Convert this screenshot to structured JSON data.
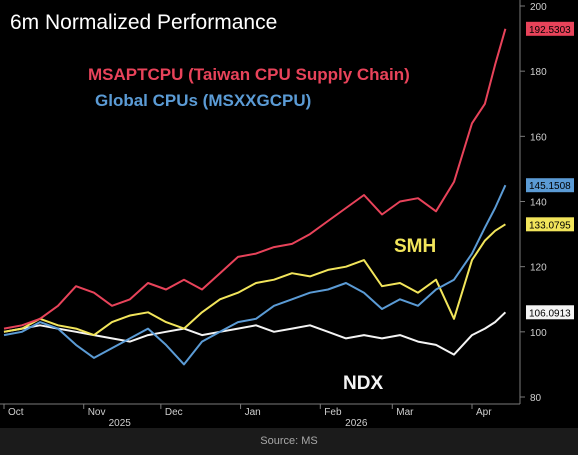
{
  "chart_data": {
    "type": "line",
    "title": "6m Normalized Performance",
    "source": "Source: MS",
    "xlabel": "",
    "ylabel": "",
    "ylim": [
      80,
      200
    ],
    "yticks": [
      80,
      100,
      120,
      140,
      160,
      180,
      200
    ],
    "x_start": "2025-10-01",
    "x_end": "2026-04-15",
    "month_ticks": [
      {
        "label": "Oct",
        "date": "2025-10-01"
      },
      {
        "label": "Nov",
        "date": "2025-11-01"
      },
      {
        "label": "Dec",
        "date": "2025-12-01"
      },
      {
        "label": "Jan",
        "date": "2026-01-01"
      },
      {
        "label": "Feb",
        "date": "2026-02-01"
      },
      {
        "label": "Mar",
        "date": "2026-03-01"
      },
      {
        "label": "Apr",
        "date": "2026-04-01"
      }
    ],
    "year_labels": [
      {
        "label": "2025",
        "date": "2025-11-15"
      },
      {
        "label": "2026",
        "date": "2026-02-15"
      }
    ],
    "grid": false,
    "legend": "top-left",
    "series": [
      {
        "name": "MSAPTCPU (Taiwan CPU Supply Chain)",
        "color": "#e8435a",
        "last_value_label": "192.5303",
        "x": [
          "2025-10-01",
          "2025-10-08",
          "2025-10-15",
          "2025-10-22",
          "2025-10-29",
          "2025-11-05",
          "2025-11-12",
          "2025-11-19",
          "2025-11-26",
          "2025-12-03",
          "2025-12-10",
          "2025-12-17",
          "2025-12-24",
          "2025-12-31",
          "2026-01-07",
          "2026-01-14",
          "2026-01-21",
          "2026-01-28",
          "2026-02-04",
          "2026-02-11",
          "2026-02-18",
          "2026-02-25",
          "2026-03-04",
          "2026-03-11",
          "2026-03-18",
          "2026-03-25",
          "2026-04-01",
          "2026-04-06",
          "2026-04-10",
          "2026-04-14"
        ],
        "values": [
          101,
          102,
          104,
          108,
          114,
          112,
          108,
          110,
          115,
          113,
          116,
          113,
          118,
          123,
          124,
          126,
          127,
          130,
          134,
          138,
          142,
          136,
          140,
          141,
          137,
          146,
          164,
          170,
          182,
          193
        ]
      },
      {
        "name": "Global CPUs (MSXXGCPU)",
        "color": "#5b9bd5",
        "last_value_label": "145.1508",
        "x": [
          "2025-10-01",
          "2025-10-08",
          "2025-10-15",
          "2025-10-22",
          "2025-10-29",
          "2025-11-05",
          "2025-11-12",
          "2025-11-19",
          "2025-11-26",
          "2025-12-03",
          "2025-12-10",
          "2025-12-17",
          "2025-12-24",
          "2025-12-31",
          "2026-01-07",
          "2026-01-14",
          "2026-01-21",
          "2026-01-28",
          "2026-02-04",
          "2026-02-11",
          "2026-02-18",
          "2026-02-25",
          "2026-03-04",
          "2026-03-11",
          "2026-03-18",
          "2026-03-25",
          "2026-04-01",
          "2026-04-06",
          "2026-04-10",
          "2026-04-14"
        ],
        "values": [
          99,
          100,
          103,
          101,
          96,
          92,
          95,
          98,
          101,
          96,
          90,
          97,
          100,
          103,
          104,
          108,
          110,
          112,
          113,
          115,
          112,
          107,
          110,
          108,
          113,
          116,
          124,
          132,
          138,
          145
        ]
      },
      {
        "name": "SMH",
        "color": "#f2e55b",
        "last_value_label": "133.0795",
        "x": [
          "2025-10-01",
          "2025-10-08",
          "2025-10-15",
          "2025-10-22",
          "2025-10-29",
          "2025-11-05",
          "2025-11-12",
          "2025-11-19",
          "2025-11-26",
          "2025-12-03",
          "2025-12-10",
          "2025-12-17",
          "2025-12-24",
          "2025-12-31",
          "2026-01-07",
          "2026-01-14",
          "2026-01-21",
          "2026-01-28",
          "2026-02-04",
          "2026-02-11",
          "2026-02-18",
          "2026-02-25",
          "2026-03-04",
          "2026-03-11",
          "2026-03-18",
          "2026-03-25",
          "2026-04-01",
          "2026-04-06",
          "2026-04-10",
          "2026-04-14"
        ],
        "values": [
          100,
          101,
          104,
          102,
          101,
          99,
          103,
          105,
          106,
          103,
          101,
          106,
          110,
          112,
          115,
          116,
          118,
          117,
          119,
          120,
          122,
          114,
          115,
          112,
          116,
          104,
          122,
          128,
          131,
          133
        ]
      },
      {
        "name": "NDX",
        "color": "#f4f4f4",
        "last_value_label": "106.0913",
        "x": [
          "2025-10-01",
          "2025-10-08",
          "2025-10-15",
          "2025-10-22",
          "2025-10-29",
          "2025-11-05",
          "2025-11-12",
          "2025-11-19",
          "2025-11-26",
          "2025-12-03",
          "2025-12-10",
          "2025-12-17",
          "2025-12-24",
          "2025-12-31",
          "2026-01-07",
          "2026-01-14",
          "2026-01-21",
          "2026-01-28",
          "2026-02-04",
          "2026-02-11",
          "2026-02-18",
          "2026-02-25",
          "2026-03-04",
          "2026-03-11",
          "2026-03-18",
          "2026-03-25",
          "2026-04-01",
          "2026-04-06",
          "2026-04-10",
          "2026-04-14"
        ],
        "values": [
          100,
          101,
          102,
          101,
          100,
          99,
          98,
          97,
          99,
          100,
          101,
          99,
          100,
          101,
          102,
          100,
          101,
          102,
          100,
          98,
          99,
          98,
          99,
          97,
          96,
          93,
          99,
          101,
          103,
          106
        ]
      }
    ],
    "annotations": [
      {
        "text": "MSAPTCPU (Taiwan CPU Supply Chain)",
        "color": "#e8435a"
      },
      {
        "text": "Global CPUs (MSXXGCPU)",
        "color": "#5b9bd5"
      },
      {
        "text": "SMH",
        "color": "#f2e55b"
      },
      {
        "text": "NDX",
        "color": "#f4f4f4"
      }
    ]
  }
}
